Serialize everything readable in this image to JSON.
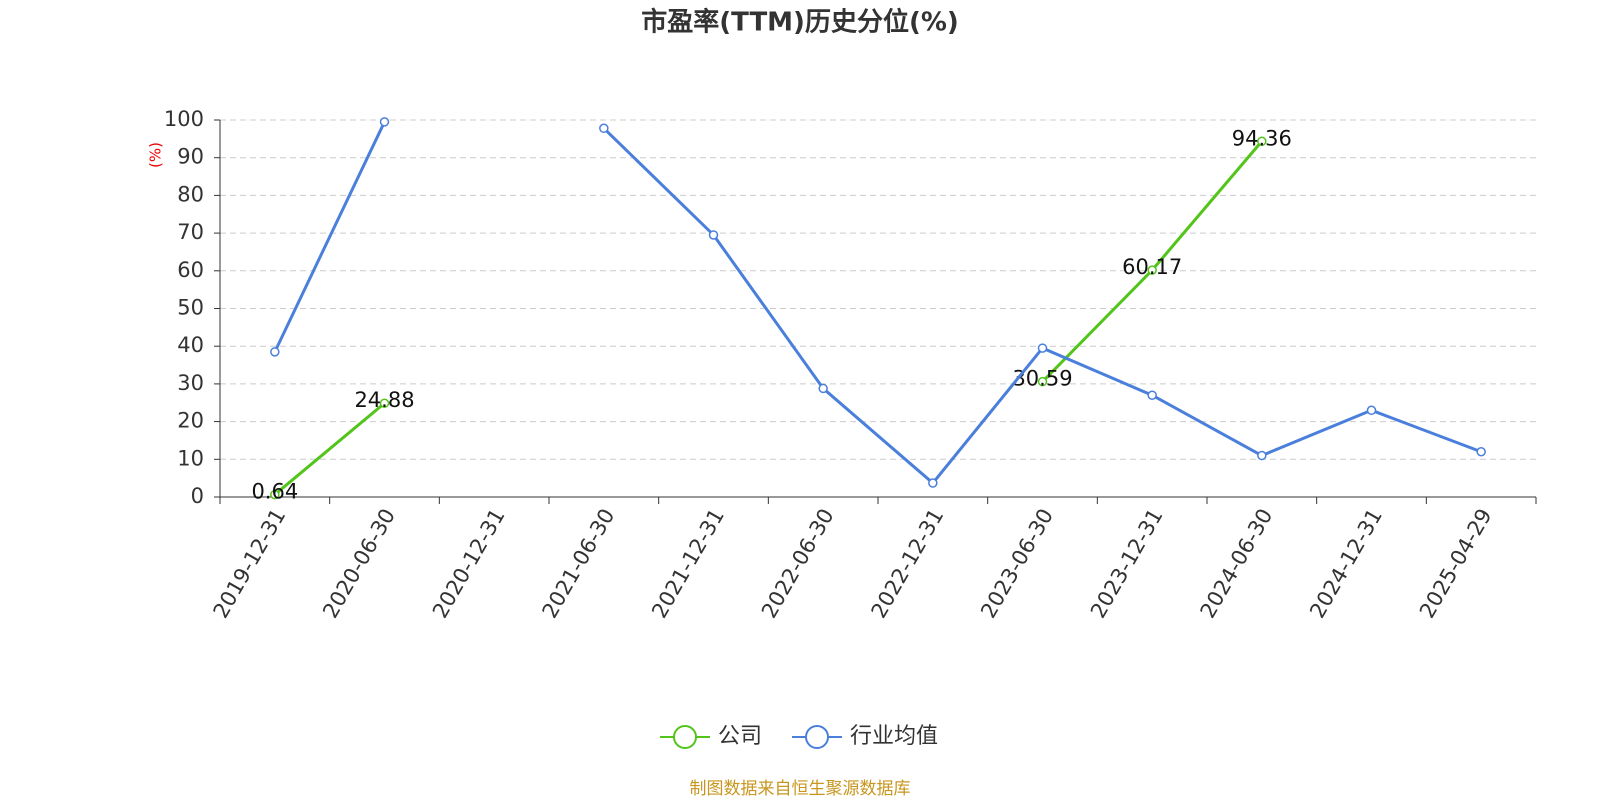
{
  "chart_data": {
    "type": "line",
    "title": "市盈率(TTM)历史分位(%)",
    "y_label": "(%)",
    "categories": [
      "2019-12-31",
      "2020-06-30",
      "2020-12-31",
      "2021-06-30",
      "2021-12-31",
      "2022-06-30",
      "2022-12-31",
      "2023-06-30",
      "2023-12-31",
      "2024-06-30",
      "2024-12-31",
      "2025-04-29"
    ],
    "series": [
      {
        "name": "公司",
        "color": "#52c41a",
        "show_labels": true,
        "values": [
          0.64,
          24.88,
          null,
          null,
          null,
          null,
          null,
          30.59,
          60.17,
          94.36,
          null,
          null
        ]
      },
      {
        "name": "行业均值",
        "color": "#4a7fdc",
        "show_labels": false,
        "values": [
          38.5,
          99.5,
          null,
          97.8,
          69.5,
          28.8,
          3.7,
          39.5,
          27,
          11,
          23,
          12
        ]
      }
    ],
    "ylim": [
      0,
      100
    ],
    "yticks": [
      0,
      10,
      20,
      30,
      40,
      50,
      60,
      70,
      80,
      90,
      100
    ],
    "grid": true,
    "source": "制图数据来自恒生聚源数据库"
  }
}
